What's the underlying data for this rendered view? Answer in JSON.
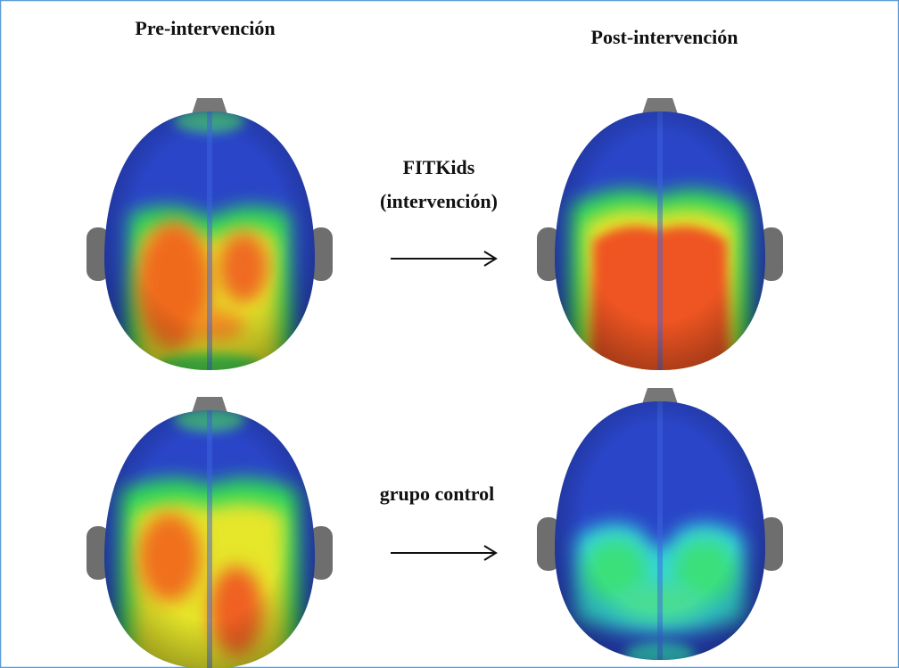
{
  "labels": {
    "pre": "Pre-intervención",
    "post": "Post-intervención"
  },
  "rows": [
    {
      "group_lines": [
        "FITKids",
        "(intervención)"
      ]
    },
    {
      "group_lines": [
        "grupo control"
      ]
    }
  ]
}
